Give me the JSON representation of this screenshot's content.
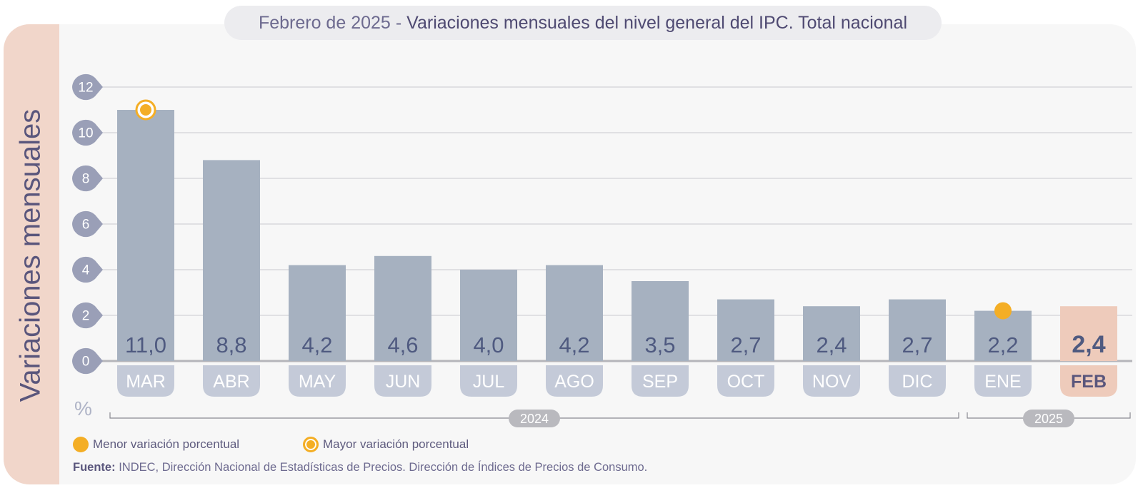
{
  "title": {
    "prefix": "Febrero de 2025",
    "separator": "-",
    "main": "Variaciones mensuales del nivel general del IPC. Total nacional"
  },
  "y_axis_title": "Variaciones mensuales",
  "unit_label": "%",
  "legend": {
    "min_label": "Menor variación porcentual",
    "max_label": "Mayor variación porcentual"
  },
  "source": {
    "label": "Fuente:",
    "text": "INDEC, Dirección Nacional de Estadísticas de Precios. Dirección de Índices de Precios de Consumo."
  },
  "colors": {
    "bar": "#a6b1c0",
    "bar_highlight": "#eecbbb",
    "month_pill": "#c4cad8",
    "tick_bubble": "#9a9fb7",
    "marker": "#f4ae25",
    "value_text": "#4f5a80"
  },
  "chart_data": {
    "type": "bar",
    "categories": [
      "MAR",
      "ABR",
      "MAY",
      "JUN",
      "JUL",
      "AGO",
      "SEP",
      "OCT",
      "NOV",
      "DIC",
      "ENE",
      "FEB"
    ],
    "values": [
      11.0,
      8.8,
      4.2,
      4.6,
      4.0,
      4.2,
      3.5,
      2.7,
      2.4,
      2.7,
      2.2,
      2.4
    ],
    "value_labels": [
      "11,0",
      "8,8",
      "4,2",
      "4,6",
      "4,0",
      "4,2",
      "3,5",
      "2,7",
      "2,4",
      "2,7",
      "2,2",
      "2,4"
    ],
    "highlight": "FEB",
    "max_marker": "MAR",
    "min_marker": "ENE",
    "year_groups": [
      {
        "label": "2024",
        "categories": [
          "MAR",
          "ABR",
          "MAY",
          "JUN",
          "JUL",
          "AGO",
          "SEP",
          "OCT",
          "NOV",
          "DIC"
        ]
      },
      {
        "label": "2025",
        "categories": [
          "ENE",
          "FEB"
        ]
      }
    ],
    "y_ticks": [
      0,
      2,
      4,
      6,
      8,
      10,
      12
    ],
    "ylim": [
      0,
      12
    ],
    "grid": true
  }
}
